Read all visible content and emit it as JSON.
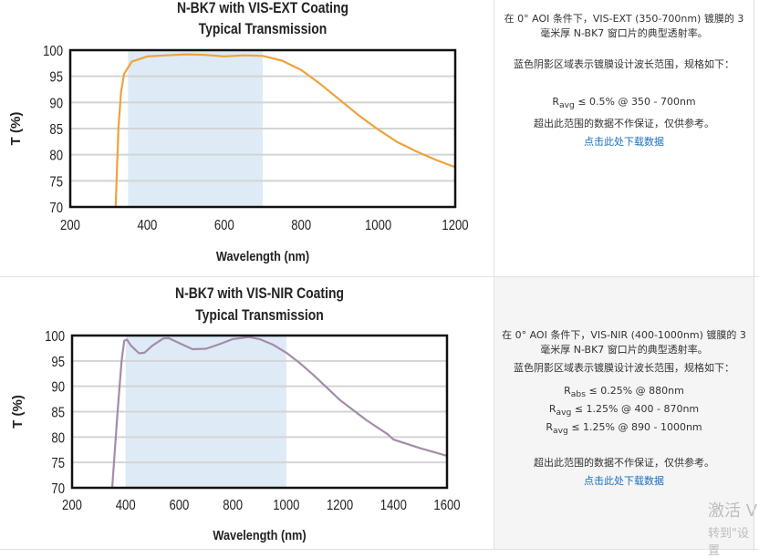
{
  "chart_data": [
    {
      "type": "line",
      "title": "N-BK7 with VIS-EXT Coating",
      "subtitle": "Typical Transmission",
      "xlabel": "Wavelength (nm)",
      "ylabel": "T (%)",
      "xlim": [
        200,
        1200
      ],
      "ylim": [
        70,
        100
      ],
      "xticks": [
        200,
        400,
        600,
        800,
        1000,
        1200
      ],
      "yticks": [
        70,
        75,
        80,
        85,
        90,
        95,
        100
      ],
      "grid": "horizontal",
      "shaded_band": [
        350,
        700
      ],
      "shade_color": "#deebf6",
      "line_color": "#f0a23c",
      "series": [
        {
          "x": [
            318,
            325,
            332,
            340,
            360,
            400,
            450,
            500,
            550,
            600,
            650,
            700,
            750,
            800,
            850,
            900,
            950,
            1000,
            1050,
            1100,
            1150,
            1200
          ],
          "y": [
            70,
            85,
            92,
            95.5,
            97.8,
            98.8,
            99,
            99.2,
            99.1,
            98.8,
            99,
            98.9,
            98,
            96.2,
            93.5,
            90.5,
            87.5,
            84.8,
            82.4,
            80.6,
            79,
            77.6
          ]
        }
      ]
    },
    {
      "type": "line",
      "title": "N-BK7 with VIS-NIR Coating",
      "subtitle": "Typical Transmission",
      "xlabel": "Wavelength (nm)",
      "ylabel": "T (%)",
      "xlim": [
        200,
        1600
      ],
      "ylim": [
        70,
        100
      ],
      "xticks": [
        200,
        400,
        600,
        800,
        1000,
        1200,
        1400,
        1600
      ],
      "yticks": [
        70,
        75,
        80,
        85,
        90,
        95,
        100
      ],
      "grid": "horizontal",
      "shaded_band": [
        400,
        1000
      ],
      "shade_color": "#deebf6",
      "line_color": "#a48caa",
      "series": [
        {
          "x": [
            350,
            370,
            385,
            395,
            405,
            420,
            450,
            470,
            500,
            540,
            560,
            600,
            650,
            700,
            750,
            800,
            860,
            900,
            950,
            1000,
            1050,
            1100,
            1200,
            1300,
            1380,
            1400,
            1500,
            1600
          ],
          "y": [
            70,
            85,
            95,
            99,
            99.2,
            98,
            96.5,
            96.6,
            98,
            99.4,
            99.5,
            98.5,
            97.3,
            97.4,
            98.3,
            99.3,
            99.7,
            99.3,
            98.2,
            96.6,
            94.6,
            92.3,
            87.3,
            83.3,
            80.5,
            79.5,
            77.8,
            76.3
          ]
        }
      ]
    }
  ],
  "descriptions": [
    {
      "line1": "在 0° AOI 条件下，VIS-EXT (350-700nm) 镀膜的 3",
      "line2": "毫米厚 N-BK7 窗口片的典型透射率。",
      "shade_note": "蓝色阴影区域表示镀膜设计波长范围，规格如下：",
      "specs": [
        {
          "sym": "R",
          "sub": "avg",
          "text": " ≤ 0.5% @ 350 - 700nm"
        }
      ],
      "disclaimer": "超出此范围的数据不作保证，仅供参考。",
      "download": "点击此处下载数据"
    },
    {
      "line1": "在 0° AOI 条件下，VIS-NIR (400-1000nm) 镀膜的 3",
      "line2": "毫米厚 N-BK7 窗口片的典型透射率。",
      "shade_note": "蓝色阴影区域表示镀膜设计波长范围，规格如下：",
      "specs": [
        {
          "sym": "R",
          "sub": "abs",
          "text": " ≤ 0.25% @ 880nm"
        },
        {
          "sym": "R",
          "sub": "avg",
          "text": " ≤ 1.25% @ 400 - 870nm"
        },
        {
          "sym": "R",
          "sub": "avg",
          "text": " ≤ 1.25% @ 890 - 1000nm"
        }
      ],
      "disclaimer": "超出此范围的数据不作保证，仅供参考。",
      "download": "点击此处下载数据"
    }
  ],
  "watermark": {
    "line1": "激活 V",
    "line2": "转到\"设置"
  }
}
